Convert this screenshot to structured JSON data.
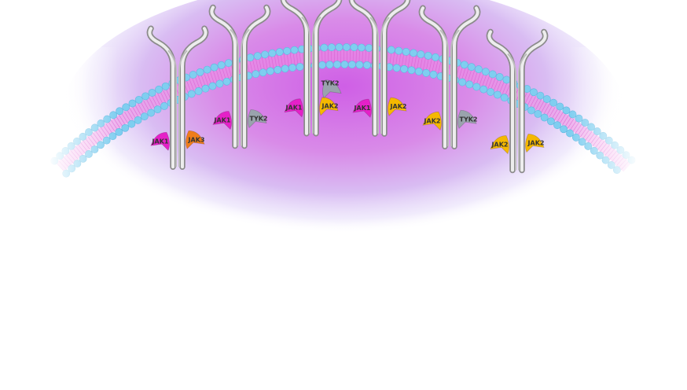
{
  "colors": {
    "jak1": "#e520c8",
    "jak2": "#f5b800",
    "jak3": "#ef7d1a",
    "tyk2": "#9aa3ad",
    "membrane_head": "#7fcef0",
    "membrane_tail": "#f08ee3",
    "cytoplasm": "#d98be8",
    "receptor": "#c7c7c7"
  },
  "receptors": [
    {
      "left": {
        "label": "JAK1",
        "color": "jak1"
      },
      "right": {
        "label": "JAK3",
        "color": "jak3"
      }
    },
    {
      "left": {
        "label": "JAK1",
        "color": "jak1"
      },
      "right": {
        "label": "TYK2",
        "color": "tyk2"
      }
    },
    {
      "left": {
        "label": "JAK1",
        "color": "jak1"
      },
      "right": {
        "label": "JAK2",
        "color": "jak2"
      },
      "extra": {
        "label": "TYK2",
        "color": "tyk2"
      }
    },
    {
      "left": {
        "label": "JAK1",
        "color": "jak1"
      },
      "right": {
        "label": "JAK2",
        "color": "jak2"
      }
    },
    {
      "left": {
        "label": "JAK2",
        "color": "jak2"
      },
      "right": {
        "label": "TYK2",
        "color": "tyk2"
      }
    },
    {
      "left": {
        "label": "JAK2",
        "color": "jak2"
      },
      "right": {
        "label": "JAK2",
        "color": "jak2"
      }
    }
  ]
}
